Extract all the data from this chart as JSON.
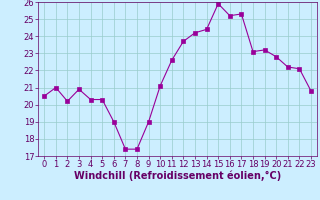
{
  "x": [
    0,
    1,
    2,
    3,
    4,
    5,
    6,
    7,
    8,
    9,
    10,
    11,
    12,
    13,
    14,
    15,
    16,
    17,
    18,
    19,
    20,
    21,
    22,
    23
  ],
  "y": [
    20.5,
    21.0,
    20.2,
    20.9,
    20.3,
    20.3,
    19.0,
    17.4,
    17.4,
    19.0,
    21.1,
    22.6,
    23.7,
    24.2,
    24.4,
    25.9,
    25.2,
    25.3,
    23.1,
    23.2,
    22.8,
    22.2,
    22.1,
    20.8
  ],
  "line_color": "#990099",
  "marker": "s",
  "marker_size": 2.5,
  "bg_color": "#cceeff",
  "grid_color": "#99cccc",
  "xlabel": "Windchill (Refroidissement éolien,°C)",
  "ylim": [
    17,
    26
  ],
  "xlim": [
    -0.5,
    23.5
  ],
  "yticks": [
    17,
    18,
    19,
    20,
    21,
    22,
    23,
    24,
    25,
    26
  ],
  "xticks": [
    0,
    1,
    2,
    3,
    4,
    5,
    6,
    7,
    8,
    9,
    10,
    11,
    12,
    13,
    14,
    15,
    16,
    17,
    18,
    19,
    20,
    21,
    22,
    23
  ],
  "tick_fontsize": 6,
  "xlabel_fontsize": 7,
  "tick_color": "#660066",
  "label_color": "#660066",
  "spine_color": "#660066"
}
